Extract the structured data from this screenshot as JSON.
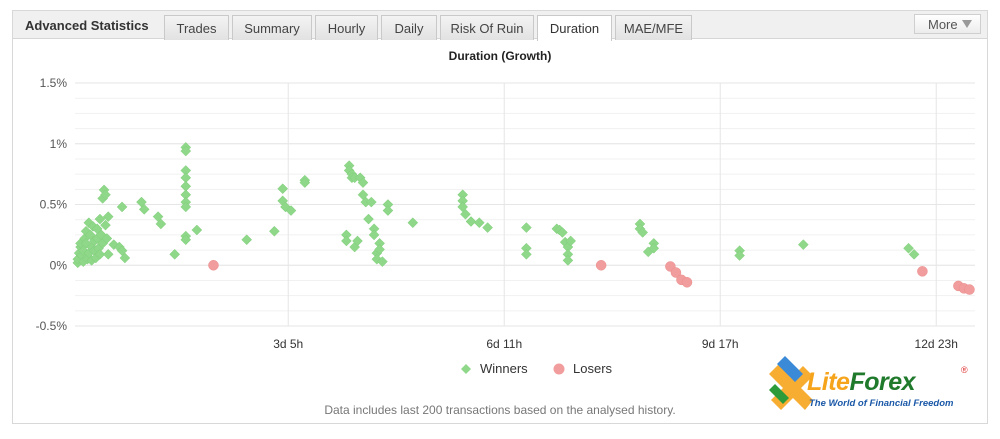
{
  "header": {
    "title": "Advanced Statistics",
    "tabs": [
      {
        "label": "Trades",
        "active": false
      },
      {
        "label": "Summary",
        "active": false
      },
      {
        "label": "Hourly",
        "active": false
      },
      {
        "label": "Daily",
        "active": false
      },
      {
        "label": "Risk Of Ruin",
        "active": false
      },
      {
        "label": "Duration",
        "active": true
      },
      {
        "label": "MAE/MFE",
        "active": false
      }
    ],
    "more_label": "More"
  },
  "footnote": "Data includes last 200 transactions based on the analysed history.",
  "logo": {
    "name_part1": "Lite",
    "name_part2": "Forex",
    "registered": "®",
    "tagline": "The World of Financial Freedom"
  },
  "colors": {
    "winners": "#8fd88a",
    "losers": "#f29d9d",
    "grid": "#e6e6e6",
    "accent_green": "#1f7a2c",
    "accent_orange": "#f5a41c",
    "accent_blue": "#1a58a8"
  },
  "chart_data": {
    "type": "scatter",
    "title": "Duration (Growth)",
    "xlabel": "",
    "ylabel": "",
    "x_unit": "hours",
    "xlim": [
      0,
      325
    ],
    "ylim": [
      -0.5,
      1.5
    ],
    "y_ticks": [
      {
        "value": 1.5,
        "label": "1.5%"
      },
      {
        "value": 1.0,
        "label": "1%"
      },
      {
        "value": 0.5,
        "label": "0.5%"
      },
      {
        "value": 0.0,
        "label": "0%"
      },
      {
        "value": -0.5,
        "label": "-0.5%"
      }
    ],
    "x_ticks": [
      {
        "value": 77,
        "label": "3d 5h"
      },
      {
        "value": 155,
        "label": "6d 11h"
      },
      {
        "value": 233,
        "label": "9d 17h"
      },
      {
        "value": 311,
        "label": "12d 23h"
      }
    ],
    "legend": {
      "position": "bottom",
      "items": [
        "Winners",
        "Losers"
      ]
    },
    "grid": true,
    "series": [
      {
        "name": "Winners",
        "marker": "diamond",
        "points": [
          [
            1,
            0.02
          ],
          [
            1,
            0.05
          ],
          [
            1.5,
            0.1
          ],
          [
            2,
            0.15
          ],
          [
            2,
            0.18
          ],
          [
            2.5,
            0.08
          ],
          [
            3,
            0.03
          ],
          [
            3,
            0.12
          ],
          [
            3.5,
            0.22
          ],
          [
            4,
            0.28
          ],
          [
            4,
            0.18
          ],
          [
            4.5,
            0.05
          ],
          [
            5,
            0.35
          ],
          [
            5,
            0.1
          ],
          [
            5.5,
            0.25
          ],
          [
            6,
            0.15
          ],
          [
            6,
            0.04
          ],
          [
            6.5,
            0.32
          ],
          [
            7,
            0.2
          ],
          [
            7,
            0.12
          ],
          [
            7.5,
            0.06
          ],
          [
            8,
            0.3
          ],
          [
            8,
            0.22
          ],
          [
            8.5,
            0.14
          ],
          [
            9,
            0.38
          ],
          [
            9,
            0.09
          ],
          [
            9.5,
            0.25
          ],
          [
            10,
            0.18
          ],
          [
            10,
            0.55
          ],
          [
            10.5,
            0.62
          ],
          [
            11,
            0.58
          ],
          [
            11,
            0.33
          ],
          [
            11.5,
            0.22
          ],
          [
            12,
            0.4
          ],
          [
            12,
            0.09
          ],
          [
            14,
            0.17
          ],
          [
            16,
            0.15
          ],
          [
            17,
            0.48
          ],
          [
            17,
            0.12
          ],
          [
            18,
            0.06
          ],
          [
            24,
            0.52
          ],
          [
            25,
            0.46
          ],
          [
            30,
            0.4
          ],
          [
            31,
            0.34
          ],
          [
            36,
            0.09
          ],
          [
            40,
            0.97
          ],
          [
            40,
            0.94
          ],
          [
            40,
            0.78
          ],
          [
            40,
            0.72
          ],
          [
            40,
            0.65
          ],
          [
            40,
            0.58
          ],
          [
            40,
            0.52
          ],
          [
            40,
            0.48
          ],
          [
            40,
            0.24
          ],
          [
            40,
            0.21
          ],
          [
            44,
            0.29
          ],
          [
            62,
            0.21
          ],
          [
            72,
            0.28
          ],
          [
            75,
            0.63
          ],
          [
            75,
            0.53
          ],
          [
            76,
            0.48
          ],
          [
            78,
            0.45
          ],
          [
            83,
            0.7
          ],
          [
            83,
            0.68
          ],
          [
            98,
            0.25
          ],
          [
            98,
            0.2
          ],
          [
            99,
            0.82
          ],
          [
            99,
            0.78
          ],
          [
            100,
            0.75
          ],
          [
            100,
            0.72
          ],
          [
            101,
            0.72
          ],
          [
            101,
            0.15
          ],
          [
            102,
            0.2
          ],
          [
            103,
            0.72
          ],
          [
            104,
            0.68
          ],
          [
            104,
            0.58
          ],
          [
            105,
            0.52
          ],
          [
            106,
            0.38
          ],
          [
            107,
            0.52
          ],
          [
            108,
            0.3
          ],
          [
            108,
            0.25
          ],
          [
            109,
            0.1
          ],
          [
            109,
            0.05
          ],
          [
            110,
            0.18
          ],
          [
            110,
            0.13
          ],
          [
            111,
            0.03
          ],
          [
            113,
            0.5
          ],
          [
            113,
            0.45
          ],
          [
            122,
            0.35
          ],
          [
            140,
            0.58
          ],
          [
            140,
            0.53
          ],
          [
            140,
            0.48
          ],
          [
            141,
            0.42
          ],
          [
            143,
            0.36
          ],
          [
            146,
            0.35
          ],
          [
            149,
            0.31
          ],
          [
            163,
            0.31
          ],
          [
            163,
            0.14
          ],
          [
            163,
            0.09
          ],
          [
            174,
            0.3
          ],
          [
            175,
            0.29
          ],
          [
            176,
            0.27
          ],
          [
            177,
            0.19
          ],
          [
            178,
            0.15
          ],
          [
            178,
            0.09
          ],
          [
            178,
            0.04
          ],
          [
            179,
            0.2
          ],
          [
            204,
            0.34
          ],
          [
            204,
            0.3
          ],
          [
            205,
            0.27
          ],
          [
            207,
            0.11
          ],
          [
            209,
            0.18
          ],
          [
            209,
            0.14
          ],
          [
            240,
            0.12
          ],
          [
            240,
            0.08
          ],
          [
            263,
            0.17
          ],
          [
            301,
            0.14
          ],
          [
            303,
            0.09
          ]
        ]
      },
      {
        "name": "Losers",
        "marker": "circle",
        "points": [
          [
            50,
            0
          ],
          [
            190,
            0
          ],
          [
            215,
            -0.01
          ],
          [
            217,
            -0.06
          ],
          [
            219,
            -0.12
          ],
          [
            221,
            -0.14
          ],
          [
            306,
            -0.05
          ],
          [
            319,
            -0.17
          ],
          [
            321,
            -0.19
          ],
          [
            323,
            -0.2
          ]
        ]
      }
    ]
  }
}
